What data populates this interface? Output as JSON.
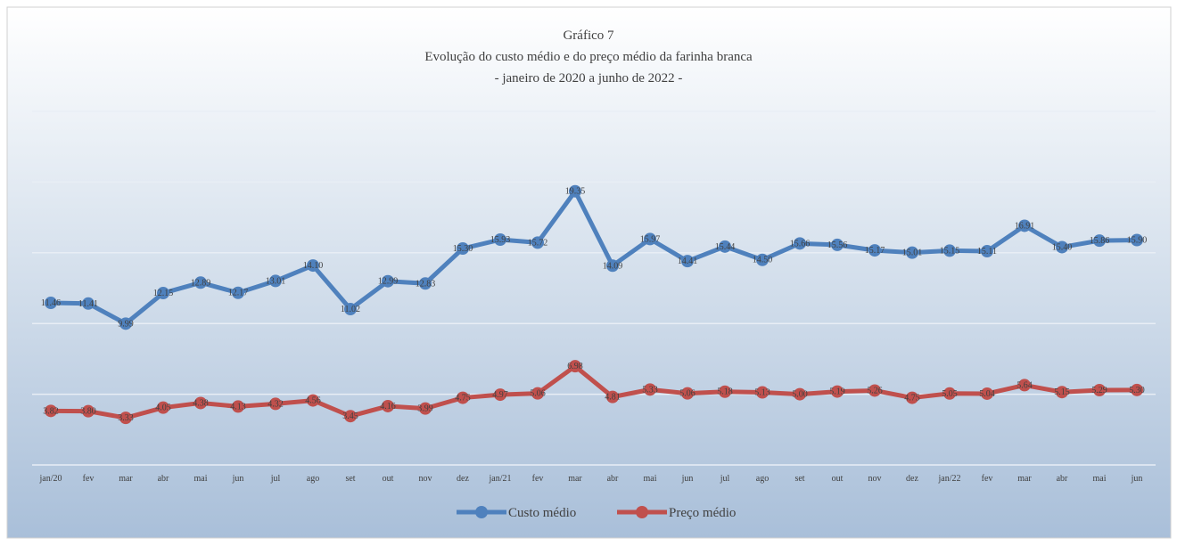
{
  "chart_data": {
    "type": "line",
    "title": "Gráfico 7",
    "subtitle": "Evolução do custo médio e do preço médio da farinha branca",
    "period": "- janeiro de 2020 a junho de 2022 -",
    "categories": [
      "jan/20",
      "fev",
      "mar",
      "abr",
      "mai",
      "jun",
      "jul",
      "ago",
      "set",
      "out",
      "nov",
      "dez",
      "jan/21",
      "fev",
      "mar",
      "abr",
      "mai",
      "jun",
      "jul",
      "ago",
      "set",
      "out",
      "nov",
      "dez",
      "jan/22",
      "fev",
      "mar",
      "abr",
      "mai",
      "jun"
    ],
    "series": [
      {
        "name": "Custo médio",
        "color": "#4f81bd",
        "values": [
          11.46,
          11.41,
          9.99,
          12.15,
          12.89,
          12.17,
          13.01,
          14.1,
          11.02,
          12.99,
          12.83,
          15.3,
          15.93,
          15.72,
          19.35,
          14.09,
          15.97,
          14.41,
          15.44,
          14.5,
          15.66,
          15.56,
          15.17,
          15.01,
          15.15,
          15.11,
          16.91,
          15.4,
          15.86,
          15.9
        ],
        "value_labels": [
          "11.46",
          "11.41",
          "9.99",
          "12.15",
          "12.89",
          "12.17",
          "13.01",
          "14.10",
          "11.02",
          "12.99",
          "12.83",
          "15.30",
          "15.93",
          "15.72",
          "19.35",
          "14.09",
          "15.97",
          "14.41",
          "15.44",
          "14.50",
          "15.66",
          "15.56",
          "15.17",
          "15.01",
          "15.15",
          "15.11",
          "16.91",
          "15.40",
          "15.86",
          "15.90"
        ]
      },
      {
        "name": "Preço médio",
        "color": "#c0504d",
        "values": [
          3.82,
          3.8,
          3.33,
          4.05,
          4.38,
          4.13,
          4.32,
          4.56,
          3.45,
          4.16,
          3.99,
          4.75,
          4.97,
          5.06,
          6.98,
          4.81,
          5.33,
          5.06,
          5.18,
          5.13,
          5.0,
          5.19,
          5.26,
          4.75,
          5.05,
          5.04,
          5.64,
          5.15,
          5.29,
          5.3
        ],
        "value_labels": [
          "3.82",
          "3.80",
          "3.33",
          "4.05",
          "4.38",
          "4.13",
          "4.32",
          "4.56",
          "3.45",
          "4.16",
          "3.99",
          "4.75",
          "4.97",
          "5.06",
          "6.98",
          "4.81",
          "5.33",
          "5.06",
          "5.18",
          "5.13",
          "5.00",
          "5.19",
          "5.26",
          "4.75",
          "5.05",
          "5.04",
          "5.64",
          "5.15",
          "5.29",
          "5.30"
        ]
      }
    ],
    "ylim": [
      0,
      25
    ],
    "yticks": [
      0,
      5,
      10,
      15,
      20,
      25
    ],
    "grid": true,
    "legend": "bottom"
  }
}
